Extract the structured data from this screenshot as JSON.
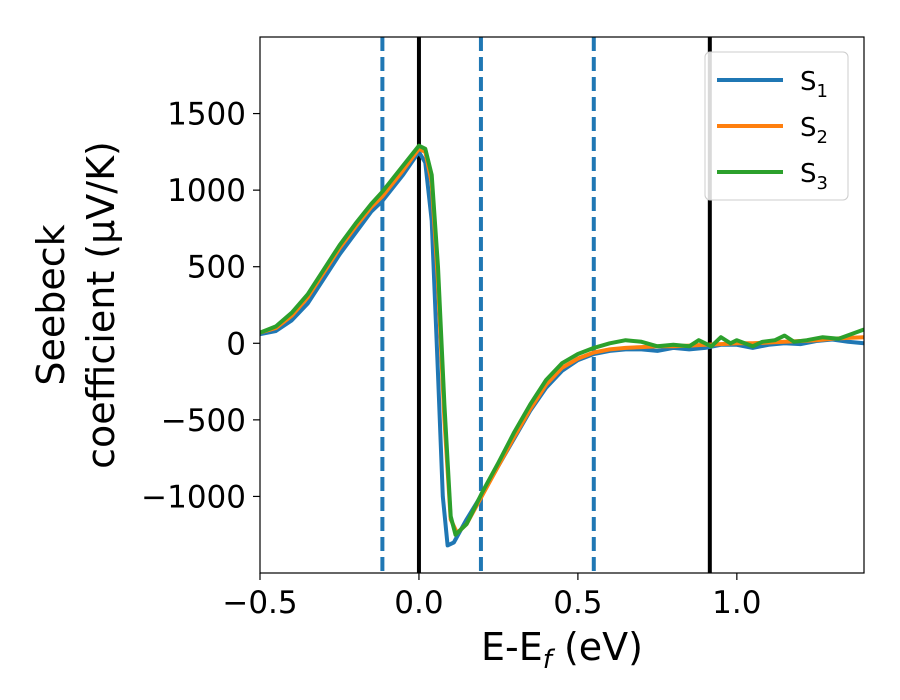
{
  "chart_data": {
    "type": "line",
    "xlabel": {
      "main": "E-E",
      "sub": "f",
      "suffix": " (eV)"
    },
    "ylabel": {
      "line1": "Seebeck",
      "line2": "coefficient  (μV/K)"
    },
    "xlim": [
      -0.5,
      1.4
    ],
    "ylim": [
      -1500,
      2000
    ],
    "x_ticks": [
      -0.5,
      0.0,
      0.5,
      1.0
    ],
    "x_tick_labels": [
      "−0.5",
      "0.0",
      "0.5",
      "1.0"
    ],
    "y_ticks": [
      -1000,
      -500,
      0,
      500,
      1000,
      1500
    ],
    "y_tick_labels": [
      "−1000",
      "−500",
      "0",
      "500",
      "1000",
      "1500"
    ],
    "legend": {
      "position": "top-right"
    },
    "vertical_lines": [
      {
        "x": -0.115,
        "style": "dashed",
        "color": "#1f77b4"
      },
      {
        "x": 0.0,
        "style": "solid",
        "color": "#000000"
      },
      {
        "x": 0.195,
        "style": "dashed",
        "color": "#1f77b4"
      },
      {
        "x": 0.55,
        "style": "dashed",
        "color": "#1f77b4"
      },
      {
        "x": 0.915,
        "style": "solid",
        "color": "#000000"
      }
    ],
    "series": [
      {
        "name": "S",
        "sub": "1",
        "color": "#1f77b4",
        "points": [
          [
            -0.5,
            60
          ],
          [
            -0.45,
            80
          ],
          [
            -0.4,
            150
          ],
          [
            -0.35,
            260
          ],
          [
            -0.3,
            420
          ],
          [
            -0.25,
            580
          ],
          [
            -0.2,
            720
          ],
          [
            -0.15,
            860
          ],
          [
            -0.115,
            930
          ],
          [
            -0.05,
            1100
          ],
          [
            0.0,
            1250
          ],
          [
            0.02,
            1180
          ],
          [
            0.04,
            800
          ],
          [
            0.06,
            -200
          ],
          [
            0.075,
            -1000
          ],
          [
            0.09,
            -1320
          ],
          [
            0.11,
            -1300
          ],
          [
            0.15,
            -1150
          ],
          [
            0.2,
            -980
          ],
          [
            0.25,
            -800
          ],
          [
            0.3,
            -620
          ],
          [
            0.35,
            -440
          ],
          [
            0.4,
            -290
          ],
          [
            0.45,
            -180
          ],
          [
            0.5,
            -110
          ],
          [
            0.55,
            -70
          ],
          [
            0.6,
            -50
          ],
          [
            0.65,
            -40
          ],
          [
            0.7,
            -40
          ],
          [
            0.75,
            -50
          ],
          [
            0.8,
            -30
          ],
          [
            0.85,
            -40
          ],
          [
            0.9,
            -30
          ],
          [
            0.95,
            -10
          ],
          [
            1.0,
            -10
          ],
          [
            1.05,
            -30
          ],
          [
            1.1,
            -10
          ],
          [
            1.15,
            0
          ],
          [
            1.2,
            -5
          ],
          [
            1.25,
            15
          ],
          [
            1.3,
            25
          ],
          [
            1.35,
            10
          ],
          [
            1.4,
            0
          ]
        ]
      },
      {
        "name": "S",
        "sub": "2",
        "color": "#ff7f0e",
        "points": [
          [
            -0.5,
            70
          ],
          [
            -0.45,
            100
          ],
          [
            -0.4,
            180
          ],
          [
            -0.35,
            300
          ],
          [
            -0.3,
            460
          ],
          [
            -0.25,
            620
          ],
          [
            -0.2,
            760
          ],
          [
            -0.15,
            890
          ],
          [
            -0.115,
            960
          ],
          [
            -0.05,
            1130
          ],
          [
            0.0,
            1270
          ],
          [
            0.02,
            1250
          ],
          [
            0.04,
            1050
          ],
          [
            0.06,
            400
          ],
          [
            0.08,
            -500
          ],
          [
            0.1,
            -1150
          ],
          [
            0.12,
            -1240
          ],
          [
            0.15,
            -1180
          ],
          [
            0.2,
            -990
          ],
          [
            0.25,
            -800
          ],
          [
            0.3,
            -610
          ],
          [
            0.35,
            -430
          ],
          [
            0.4,
            -270
          ],
          [
            0.45,
            -160
          ],
          [
            0.5,
            -100
          ],
          [
            0.55,
            -60
          ],
          [
            0.6,
            -40
          ],
          [
            0.65,
            -30
          ],
          [
            0.7,
            -25
          ],
          [
            0.75,
            -20
          ],
          [
            0.8,
            -20
          ],
          [
            0.85,
            -15
          ],
          [
            0.9,
            -10
          ],
          [
            0.95,
            -5
          ],
          [
            1.0,
            0
          ],
          [
            1.05,
            0
          ],
          [
            1.1,
            5
          ],
          [
            1.15,
            10
          ],
          [
            1.2,
            15
          ],
          [
            1.25,
            20
          ],
          [
            1.3,
            30
          ],
          [
            1.35,
            35
          ],
          [
            1.4,
            40
          ]
        ]
      },
      {
        "name": "S",
        "sub": "3",
        "color": "#2ca02c",
        "points": [
          [
            -0.5,
            70
          ],
          [
            -0.45,
            110
          ],
          [
            -0.4,
            200
          ],
          [
            -0.35,
            320
          ],
          [
            -0.3,
            480
          ],
          [
            -0.25,
            640
          ],
          [
            -0.2,
            780
          ],
          [
            -0.15,
            910
          ],
          [
            -0.115,
            990
          ],
          [
            -0.05,
            1160
          ],
          [
            0.0,
            1290
          ],
          [
            0.02,
            1270
          ],
          [
            0.04,
            1100
          ],
          [
            0.06,
            500
          ],
          [
            0.08,
            -400
          ],
          [
            0.1,
            -1130
          ],
          [
            0.115,
            -1250
          ],
          [
            0.15,
            -1180
          ],
          [
            0.2,
            -970
          ],
          [
            0.25,
            -780
          ],
          [
            0.3,
            -580
          ],
          [
            0.35,
            -400
          ],
          [
            0.4,
            -240
          ],
          [
            0.45,
            -130
          ],
          [
            0.5,
            -70
          ],
          [
            0.55,
            -30
          ],
          [
            0.6,
            0
          ],
          [
            0.65,
            20
          ],
          [
            0.7,
            10
          ],
          [
            0.75,
            -20
          ],
          [
            0.8,
            -10
          ],
          [
            0.85,
            -20
          ],
          [
            0.88,
            20
          ],
          [
            0.92,
            -20
          ],
          [
            0.95,
            40
          ],
          [
            0.98,
            0
          ],
          [
            1.0,
            20
          ],
          [
            1.05,
            -20
          ],
          [
            1.08,
            10
          ],
          [
            1.12,
            20
          ],
          [
            1.15,
            50
          ],
          [
            1.18,
            10
          ],
          [
            1.22,
            20
          ],
          [
            1.27,
            40
          ],
          [
            1.32,
            30
          ],
          [
            1.36,
            60
          ],
          [
            1.4,
            90
          ]
        ]
      }
    ]
  }
}
